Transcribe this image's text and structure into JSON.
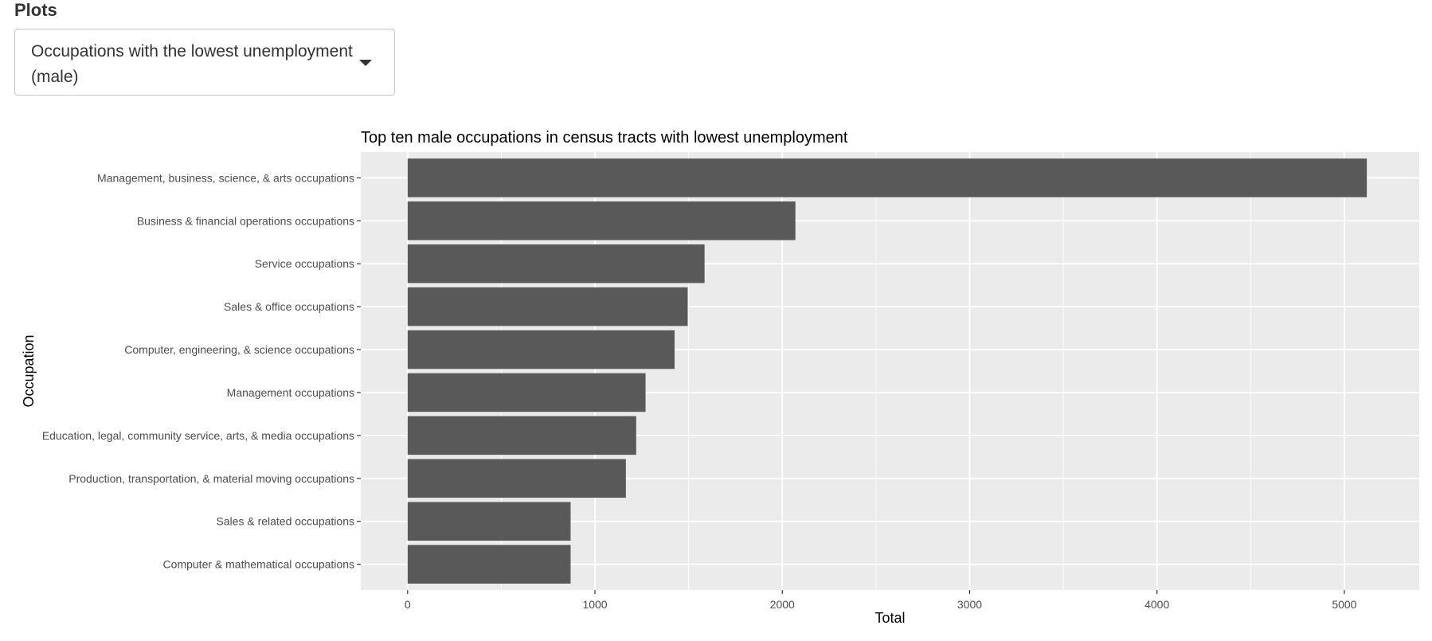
{
  "page": {
    "section_title": "Plots"
  },
  "selector": {
    "value": "Occupations with the lowest unemployment (male)",
    "icon": "caret-down-icon"
  },
  "chart_data": {
    "type": "bar",
    "orientation": "horizontal",
    "title": "Top ten male occupations in census tracts with lowest unemployment",
    "xlabel": "Total",
    "ylabel": "Occupation",
    "xlim": [
      -250,
      5400
    ],
    "x_ticks": [
      0,
      1000,
      2000,
      3000,
      4000,
      5000
    ],
    "categories": [
      "Management, business, science, & arts occupations",
      "Business & financial operations occupations",
      "Service occupations",
      "Sales & office occupations",
      "Computer, engineering, & science occupations",
      "Management occupations",
      "Education, legal, community service, arts, & media occupations",
      "Production, transportation, & material moving occupations",
      "Sales & related occupations",
      "Computer & mathematical occupations"
    ],
    "values": [
      5120,
      2070,
      1585,
      1495,
      1425,
      1270,
      1220,
      1165,
      870,
      870
    ],
    "grid": true,
    "legend": "none",
    "colors": {
      "bar": "#595959",
      "panel": "#ebebeb",
      "grid": "#ffffff"
    }
  }
}
